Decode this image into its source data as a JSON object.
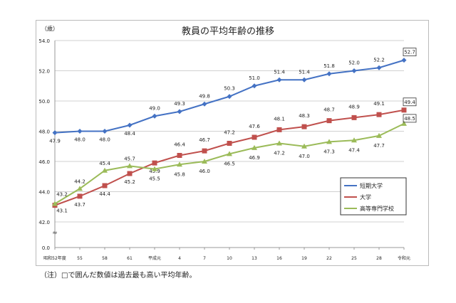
{
  "chart_data": {
    "type": "line",
    "title": "教員の平均年齢の推移",
    "ylabel": "（歳）",
    "ylim": [
      42.0,
      54.0
    ],
    "y_ticks": [
      "54.0",
      "52.0",
      "50.0",
      "48.0",
      "46.0",
      "44.0",
      "42.0",
      "0.0"
    ],
    "axis_break": true,
    "grid": true,
    "legend_placement": "right-middle",
    "categories": [
      "昭和52年度",
      "55",
      "58",
      "61",
      "平成元",
      "4",
      "7",
      "10",
      "13",
      "16",
      "19",
      "22",
      "25",
      "28",
      "令和元"
    ],
    "series": [
      {
        "name": "短期大学",
        "color": "#4472C4",
        "marker": "diamond",
        "values": [
          47.9,
          48.0,
          48.0,
          48.4,
          49.0,
          49.3,
          49.8,
          50.3,
          51.0,
          51.4,
          51.4,
          51.8,
          52.0,
          52.2,
          52.7
        ]
      },
      {
        "name": "大学",
        "color": "#C0504D",
        "marker": "square",
        "values": [
          43.1,
          43.7,
          44.4,
          45.2,
          45.9,
          46.4,
          46.7,
          47.2,
          47.6,
          48.1,
          48.3,
          48.7,
          48.9,
          49.1,
          49.4
        ]
      },
      {
        "name": "高等専門学校",
        "color": "#9BBB59",
        "marker": "triangle",
        "values": [
          43.2,
          44.2,
          45.4,
          45.7,
          45.5,
          45.8,
          46.0,
          46.5,
          46.9,
          47.2,
          47.0,
          47.3,
          47.4,
          47.7,
          48.5
        ]
      }
    ],
    "boxed_values": "last point of each series"
  },
  "note": "（注）□で囲んだ数値は過去最も高い平均年齢。"
}
